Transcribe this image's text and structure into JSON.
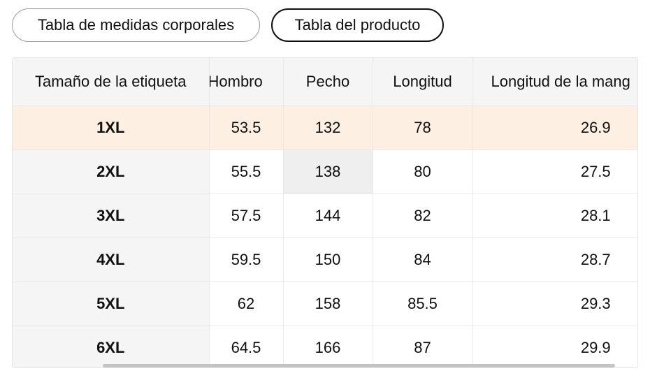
{
  "tabs": [
    {
      "label": "Tabla de medidas corporales",
      "active": false
    },
    {
      "label": "Tabla del producto",
      "active": true
    }
  ],
  "table": {
    "headers": [
      "Tamaño de la etiqueta",
      "Hombro",
      "Pecho",
      "Longitud",
      "Longitud de la mang"
    ],
    "rows": [
      [
        "1XL",
        "53.5",
        "132",
        "78",
        "26.9"
      ],
      [
        "2XL",
        "55.5",
        "138",
        "80",
        "27.5"
      ],
      [
        "3XL",
        "57.5",
        "144",
        "82",
        "28.1"
      ],
      [
        "4XL",
        "59.5",
        "150",
        "84",
        "28.7"
      ],
      [
        "5XL",
        "62",
        "158",
        "85.5",
        "29.3"
      ],
      [
        "6XL",
        "64.5",
        "166",
        "87",
        "29.9"
      ]
    ],
    "highlighted_row": 0
  },
  "colors": {
    "highlight_row": "#fdf0e2",
    "header_bg": "#f5f5f5",
    "active_border": "#111111"
  }
}
